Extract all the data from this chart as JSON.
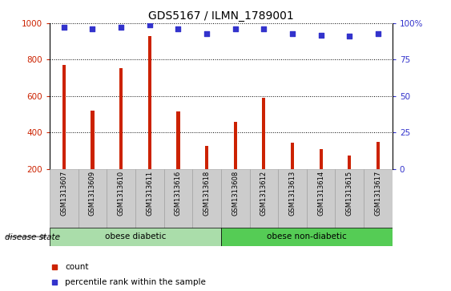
{
  "title": "GDS5167 / ILMN_1789001",
  "categories": [
    "GSM1313607",
    "GSM1313609",
    "GSM1313610",
    "GSM1313611",
    "GSM1313616",
    "GSM1313618",
    "GSM1313608",
    "GSM1313612",
    "GSM1313613",
    "GSM1313614",
    "GSM1313615",
    "GSM1313617"
  ],
  "counts": [
    770,
    520,
    752,
    930,
    515,
    328,
    458,
    592,
    342,
    308,
    273,
    348
  ],
  "percentiles": [
    97,
    96,
    97,
    99,
    96,
    93,
    96,
    96,
    93,
    92,
    91,
    93
  ],
  "ylim_left": [
    200,
    1000
  ],
  "ylim_right": [
    0,
    100
  ],
  "yticks_left": [
    200,
    400,
    600,
    800,
    1000
  ],
  "yticks_right": [
    0,
    25,
    50,
    75,
    100
  ],
  "group1_label": "obese diabetic",
  "group2_label": "obese non-diabetic",
  "group1_count": 6,
  "group2_count": 6,
  "bar_color": "#cc2200",
  "dot_color": "#3333cc",
  "group1_bg": "#aaddaa",
  "group2_bg": "#55cc55",
  "tick_bg": "#cccccc",
  "disease_label": "disease state",
  "legend_count_label": "count",
  "legend_pct_label": "percentile rank within the sample"
}
